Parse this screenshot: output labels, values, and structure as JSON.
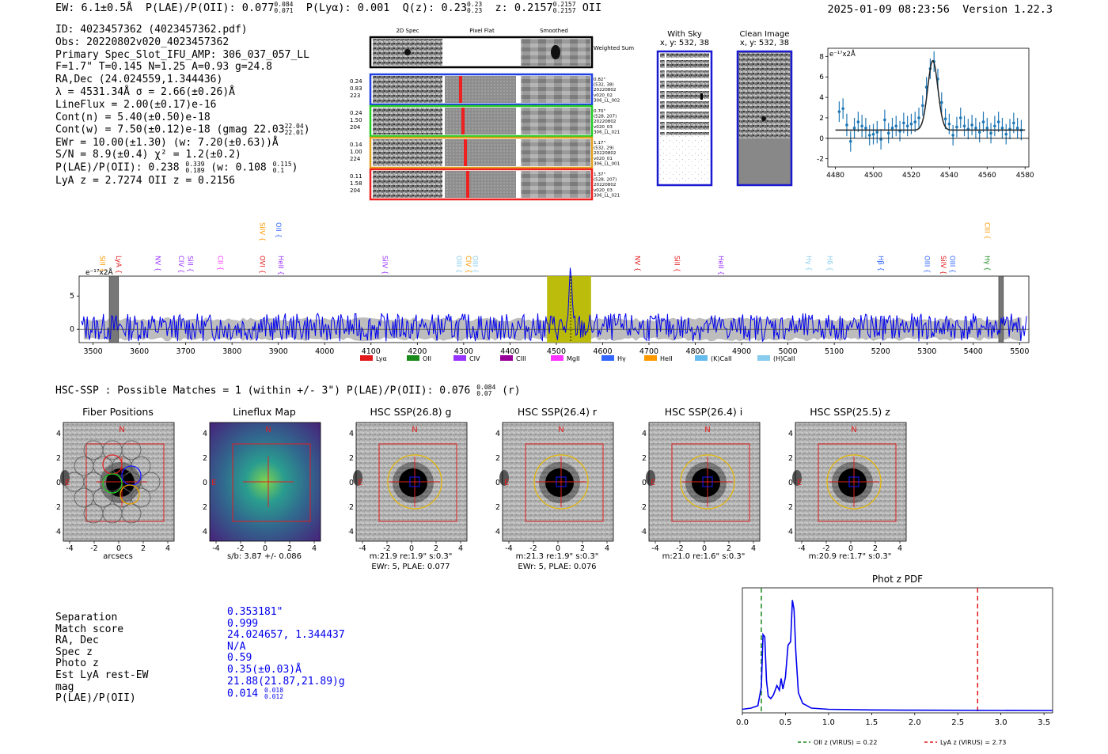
{
  "header": {
    "ew": "EW: 6.1±0.5Å",
    "plae": "P(LAE)/P(OII): 0.077",
    "plae_up": "0.084",
    "plae_lo": "0.071",
    "plya": "P(Lyα): 0.001",
    "qz": "Q(z): 0.23",
    "qz_up": "0.23",
    "qz_lo": "0.23",
    "z": "z: 0.2157",
    "z_up": "0.2157",
    "z_lo": "0.2157",
    "line": "OII",
    "datetime": "2025-01-09 08:23:56",
    "version": "Version 1.22.3"
  },
  "info": {
    "id": "ID: 4023457362 (4023457362.pdf)",
    "obs": "Obs: 20220802v020_4023457362",
    "primary": "Primary Spec_Slot_IFU_AMP: 306_037_057_LL",
    "params": "F=1.7\"  T=0.145  N=1.25  A=0.93  g=24.8",
    "radec": "RA,Dec (24.024559,1.344436)",
    "lambda": "λ = 4531.34Å  σ = 2.66(±0.26)Å",
    "lineflux": "LineFlux = 2.00(±0.17)e-16",
    "contn": "Cont(n) = 5.40(±0.50)e-18",
    "contw": "Cont(w) = 7.50(±0.12)e-18 (gmag 22.03",
    "contw_up": "22.04",
    "contw_lo": "22.01",
    "ewr": "EWr = 10.00(±1.30) (w: 7.20(±0.63))Å",
    "sn": "S/N = 8.9(±0.4)  χ² = 1.2(±0.2)",
    "plae2": "P(LAE)/P(OII): 0.238",
    "plae2_up": "0.339",
    "plae2_lo": "0.189",
    "plae2_w": "(w: 0.108",
    "plae2_w_up": "0.115",
    "plae2_w_lo": "0.1",
    "lyaz": "LyA z = 2.7274  OII z = 0.2156"
  },
  "spec2d": {
    "col_headers": [
      "2D Spec",
      "Pixel Flat",
      "Smoothed"
    ],
    "weighted_label": "Weighted Sum",
    "rows": [
      {
        "vals": [
          "0.24",
          "0.83",
          "223"
        ],
        "side": [
          "0.82\"",
          "(532, 38)",
          "20220802",
          "v020_02",
          "306_LL_002"
        ],
        "color": "#1f3fdf"
      },
      {
        "vals": [
          "0.24",
          "1.50",
          "204"
        ],
        "side": [
          "0.70\"",
          "(528, 207)",
          "20220802",
          "v020_03",
          "306_LL_021"
        ],
        "color": "#22cc22"
      },
      {
        "vals": [
          "0.14",
          "1.00",
          "224"
        ],
        "side": [
          "1.17\"",
          "(532, 29)",
          "20220802",
          "v020_01",
          "306_LL_001"
        ],
        "color": "#e0a020"
      },
      {
        "vals": [
          "0.11",
          "1.58",
          "204"
        ],
        "side": [
          "1.37\"",
          "(528, 207)",
          "20220802",
          "v020_03",
          "306_LL_021"
        ],
        "color": "#ee2020"
      }
    ]
  },
  "cutouts": {
    "with_sky": "With Sky",
    "with_sky_xy": "x, y: 532, 38",
    "clean": "Clean Image",
    "clean_xy": "x, y: 532, 38"
  },
  "zoom_plot": {
    "unit": "e⁻¹⁷x2Å",
    "xticks": [
      "4480",
      "4500",
      "4520",
      "4540",
      "4560",
      "4580"
    ],
    "yticks": [
      "-2",
      "0",
      "2",
      "4",
      "6",
      "8"
    ]
  },
  "chart_data": [
    {
      "type": "scatter",
      "title": "",
      "xlabel": "",
      "ylabel": "e-17x2Å",
      "xlim": [
        4476,
        4582
      ],
      "ylim": [
        -2.8,
        8.8
      ],
      "fit": {
        "center": 4531.34,
        "sigma": 2.66,
        "amplitude": 6.8,
        "baseline": 0.8
      },
      "points": [
        [
          4482,
          2.6,
          1.0
        ],
        [
          4484,
          2.9,
          1.0
        ],
        [
          4486,
          1.3,
          1.1
        ],
        [
          4488,
          -0.3,
          1.0
        ],
        [
          4490,
          1.0,
          1.0
        ],
        [
          4492,
          1.6,
          1.0
        ],
        [
          4494,
          1.2,
          1.1
        ],
        [
          4496,
          1.0,
          1.0
        ],
        [
          4498,
          0.3,
          1.0
        ],
        [
          4500,
          0.4,
          1.0
        ],
        [
          4502,
          0.6,
          1.1
        ],
        [
          4504,
          -0.1,
          1.0
        ],
        [
          4506,
          1.8,
          1.0
        ],
        [
          4508,
          0.5,
          1.0
        ],
        [
          4510,
          1.0,
          1.0
        ],
        [
          4512,
          1.2,
          1.0
        ],
        [
          4514,
          0.7,
          1.0
        ],
        [
          4516,
          1.5,
          1.0
        ],
        [
          4518,
          1.2,
          1.0
        ],
        [
          4520,
          1.4,
          1.0
        ],
        [
          4522,
          1.6,
          1.0
        ],
        [
          4524,
          2.0,
          1.0
        ],
        [
          4526,
          3.2,
          1.0
        ],
        [
          4528,
          5.0,
          1.0
        ],
        [
          4530,
          6.8,
          1.0
        ],
        [
          4532,
          7.5,
          1.0
        ],
        [
          4534,
          5.8,
          1.0
        ],
        [
          4536,
          3.5,
          1.0
        ],
        [
          4538,
          1.9,
          1.0
        ],
        [
          4540,
          1.4,
          1.0
        ],
        [
          4542,
          0.3,
          1.0
        ],
        [
          4544,
          1.1,
          1.0
        ],
        [
          4546,
          2.0,
          1.0
        ],
        [
          4548,
          1.2,
          1.0
        ],
        [
          4550,
          0.9,
          1.0
        ],
        [
          4552,
          1.3,
          1.0
        ],
        [
          4554,
          1.0,
          1.0
        ],
        [
          4556,
          0.6,
          1.0
        ],
        [
          4558,
          1.6,
          1.0
        ],
        [
          4560,
          1.0,
          1.0
        ],
        [
          4562,
          0.5,
          1.0
        ],
        [
          4564,
          1.2,
          1.0
        ],
        [
          4566,
          1.6,
          1.0
        ],
        [
          4568,
          1.0,
          1.0
        ],
        [
          4570,
          0.4,
          1.0
        ],
        [
          4572,
          0.9,
          1.0
        ],
        [
          4574,
          1.5,
          1.0
        ],
        [
          4576,
          1.0,
          1.0
        ],
        [
          4578,
          0.8,
          1.0
        ]
      ]
    },
    {
      "type": "line",
      "title": "",
      "ylabel": "e-17x2Å",
      "xlim": [
        3470,
        5520
      ],
      "ylim": [
        -2,
        8
      ],
      "xticks": [
        3500,
        3600,
        3700,
        3800,
        3900,
        4000,
        4100,
        4200,
        4300,
        4400,
        4500,
        4600,
        4700,
        4800,
        4900,
        5000,
        5100,
        5200,
        5300,
        5400,
        5500
      ],
      "yticks": [
        0,
        5
      ],
      "highlight_window": [
        4480,
        4575
      ],
      "emission_peak": {
        "x": 4531,
        "y": 8
      },
      "masked_regions": [
        [
          3535,
          3555
        ],
        [
          5455,
          5465
        ]
      ],
      "legend": [
        "Lyα",
        "OII",
        "CIV",
        "CIII",
        "MgII",
        "Hγ",
        "HeII",
        "(K)CaII",
        "(H)CaII"
      ],
      "legend_colors": [
        "#e31a1c",
        "#1a8a1a",
        "#9933ff",
        "#990099",
        "#ff33ff",
        "#3366ff",
        "#ff9900",
        "#66bbee",
        "#88ccee"
      ],
      "lines": [
        {
          "label": "SiII",
          "x": 3510,
          "color": "#ff9900",
          "tier": 1
        },
        {
          "label": "LyA",
          "x": 3545,
          "color": "#e31a1c",
          "tier": 1
        },
        {
          "label": "NV",
          "x": 3630,
          "color": "#9933ff",
          "tier": 1
        },
        {
          "label": "CIV",
          "x": 3680,
          "color": "#9933ff",
          "tier": 1
        },
        {
          "label": "SiII",
          "x": 3700,
          "color": "#9933ff",
          "tier": 1
        },
        {
          "label": "CII",
          "x": 3765,
          "color": "#ff33ff",
          "tier": 1
        },
        {
          "label": "OVI",
          "x": 3855,
          "color": "#e31a1c",
          "tier": 1
        },
        {
          "label": "HeII",
          "x": 3895,
          "color": "#9933ff",
          "tier": 1
        },
        {
          "label": "SiIV",
          "x": 3855,
          "color": "#ff9900",
          "tier": 0
        },
        {
          "label": "OII",
          "x": 3890,
          "color": "#3366ff",
          "tier": 0
        },
        {
          "label": "SiIV",
          "x": 4120,
          "color": "#9933ff",
          "tier": 1
        },
        {
          "label": "OIII",
          "x": 4280,
          "color": "#88ccee",
          "tier": 1
        },
        {
          "label": "CIV",
          "x": 4300,
          "color": "#ff9900",
          "tier": 1
        },
        {
          "label": "OIII",
          "x": 4315,
          "color": "#88ccee",
          "tier": 1
        },
        {
          "label": "NV",
          "x": 4665,
          "color": "#e31a1c",
          "tier": 1
        },
        {
          "label": "SiII",
          "x": 4750,
          "color": "#e31a1c",
          "tier": 1
        },
        {
          "label": "HeII",
          "x": 4845,
          "color": "#9933ff",
          "tier": 1
        },
        {
          "label": "Hγ",
          "x": 5035,
          "color": "#88ccee",
          "tier": 1
        },
        {
          "label": "Hδ",
          "x": 5080,
          "color": "#88ccee",
          "tier": 1
        },
        {
          "label": "Hβ",
          "x": 5190,
          "color": "#3366ff",
          "tier": 1
        },
        {
          "label": "OIII",
          "x": 5290,
          "color": "#3366ff",
          "tier": 1
        },
        {
          "label": "SiIV",
          "x": 5325,
          "color": "#e31a1c",
          "tier": 1
        },
        {
          "label": "OIII",
          "x": 5345,
          "color": "#3366ff",
          "tier": 1
        },
        {
          "label": "Hγ",
          "x": 5420,
          "color": "#1a8a1a",
          "tier": 1
        },
        {
          "label": "CIII",
          "x": 5420,
          "color": "#ff9900",
          "tier": 0
        }
      ],
      "ylabel_unit": "e⁻¹⁷x2Å"
    },
    {
      "type": "line",
      "title": "Phot z PDF",
      "xlim": [
        0.0,
        3.6
      ],
      "ylim": [
        0,
        1.0
      ],
      "xticks": [
        0.0,
        0.5,
        1.0,
        1.5,
        2.0,
        2.5,
        3.0,
        3.5
      ],
      "series": [
        {
          "name": "PDF",
          "x": [
            0.0,
            0.1,
            0.18,
            0.22,
            0.24,
            0.26,
            0.28,
            0.3,
            0.33,
            0.36,
            0.4,
            0.43,
            0.45,
            0.47,
            0.5,
            0.53,
            0.56,
            0.58,
            0.6,
            0.62,
            0.65,
            0.7,
            0.8,
            1.0,
            1.5,
            2.0,
            3.6
          ],
          "y": [
            0.01,
            0.02,
            0.04,
            0.2,
            0.64,
            0.62,
            0.25,
            0.12,
            0.1,
            0.13,
            0.21,
            0.17,
            0.27,
            0.18,
            0.28,
            0.55,
            0.58,
            0.93,
            0.85,
            0.5,
            0.15,
            0.06,
            0.02,
            0.01,
            0.005,
            0.003,
            0.0
          ]
        }
      ],
      "vlines": [
        {
          "label": "OII z (VIRUS) = 0.22",
          "x": 0.22,
          "color": "#1a8a1a"
        },
        {
          "label": "LyA z (VIRUS) = 2.73",
          "x": 2.73,
          "color": "#e31a1c"
        }
      ]
    }
  ],
  "hsc": {
    "heading": "HSC-SSP : Possible Matches = 1 (within +/- 3\")  P(LAE)/P(OII): 0.076",
    "heading_up": "0.084",
    "heading_lo": "0.07",
    "heading_band": "(r)",
    "panels": [
      {
        "title": "Fiber Positions",
        "cap1": "arcsecs",
        "cap2": ""
      },
      {
        "title": "Lineflux Map",
        "cap1": "s/b: 3.87 +/- 0.086",
        "cap2": ""
      },
      {
        "title": "HSC SSP(26.8) g",
        "cap1": "m:21.9  re:1.9\"  s:0.3\"",
        "cap2": "EWr: 5, PLAE: 0.077"
      },
      {
        "title": "HSC SSP(26.4) r",
        "cap1": "m:21.3  re:1.9\"  s:0.3\"",
        "cap2": "EWr: 5, PLAE: 0.076"
      },
      {
        "title": "HSC SSP(26.4) i",
        "cap1": "m:21.0  re:1.6\"  s:0.3\"",
        "cap2": ""
      },
      {
        "title": "HSC SSP(25.5) z",
        "cap1": "m:20.9  re:1.7\"  s:0.3\"",
        "cap2": ""
      }
    ],
    "axis_ticks": [
      "-4",
      "-2",
      "0",
      "2",
      "4"
    ],
    "north": "N",
    "east": "E"
  },
  "match_table": {
    "labels": [
      "Separation",
      "Match score",
      "RA, Dec",
      "Spec z",
      "Photo z",
      "Est LyA rest-EW",
      "mag",
      "P(LAE)/P(OII)"
    ],
    "values": [
      "0.353181\"",
      "0.999",
      "24.024657, 1.344437",
      "N/A",
      "0.59",
      "0.35(±0.03)Å",
      "21.88(21.87,21.89)g",
      "0.014"
    ],
    "plae_up": "0.018",
    "plae_lo": "0.012"
  }
}
